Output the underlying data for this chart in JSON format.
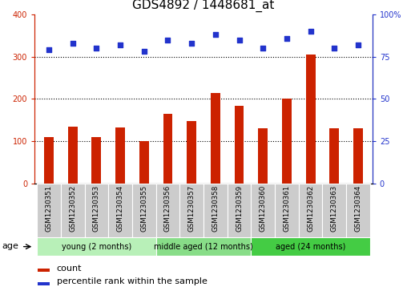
{
  "title": "GDS4892 / 1448681_at",
  "samples": [
    "GSM1230351",
    "GSM1230352",
    "GSM1230353",
    "GSM1230354",
    "GSM1230355",
    "GSM1230356",
    "GSM1230357",
    "GSM1230358",
    "GSM1230359",
    "GSM1230360",
    "GSM1230361",
    "GSM1230362",
    "GSM1230363",
    "GSM1230364"
  ],
  "counts": [
    110,
    135,
    110,
    133,
    100,
    165,
    147,
    215,
    183,
    130,
    200,
    305,
    130,
    130
  ],
  "percentiles": [
    79,
    83,
    80,
    82,
    78,
    85,
    83,
    88,
    85,
    80,
    86,
    90,
    80,
    82
  ],
  "bar_color": "#cc2200",
  "dot_color": "#2233cc",
  "ylim_left": [
    0,
    400
  ],
  "ylim_right": [
    0,
    100
  ],
  "yticks_left": [
    0,
    100,
    200,
    300,
    400
  ],
  "yticks_right": [
    0,
    25,
    50,
    75,
    100
  ],
  "groups": [
    {
      "label": "young (2 months)",
      "start": 0,
      "end": 5,
      "color": "#b8f0b8"
    },
    {
      "label": "middle aged (12 months)",
      "start": 5,
      "end": 9,
      "color": "#88dd88"
    },
    {
      "label": "aged (24 months)",
      "start": 9,
      "end": 14,
      "color": "#44cc44"
    }
  ],
  "group_row_label": "age",
  "legend_count_label": "count",
  "legend_pct_label": "percentile rank within the sample",
  "title_fontsize": 11,
  "tick_label_fontsize": 7,
  "bar_width": 0.4,
  "background_plot": "#ffffff",
  "sample_box_color": "#cccccc",
  "grid_color": "#000000"
}
